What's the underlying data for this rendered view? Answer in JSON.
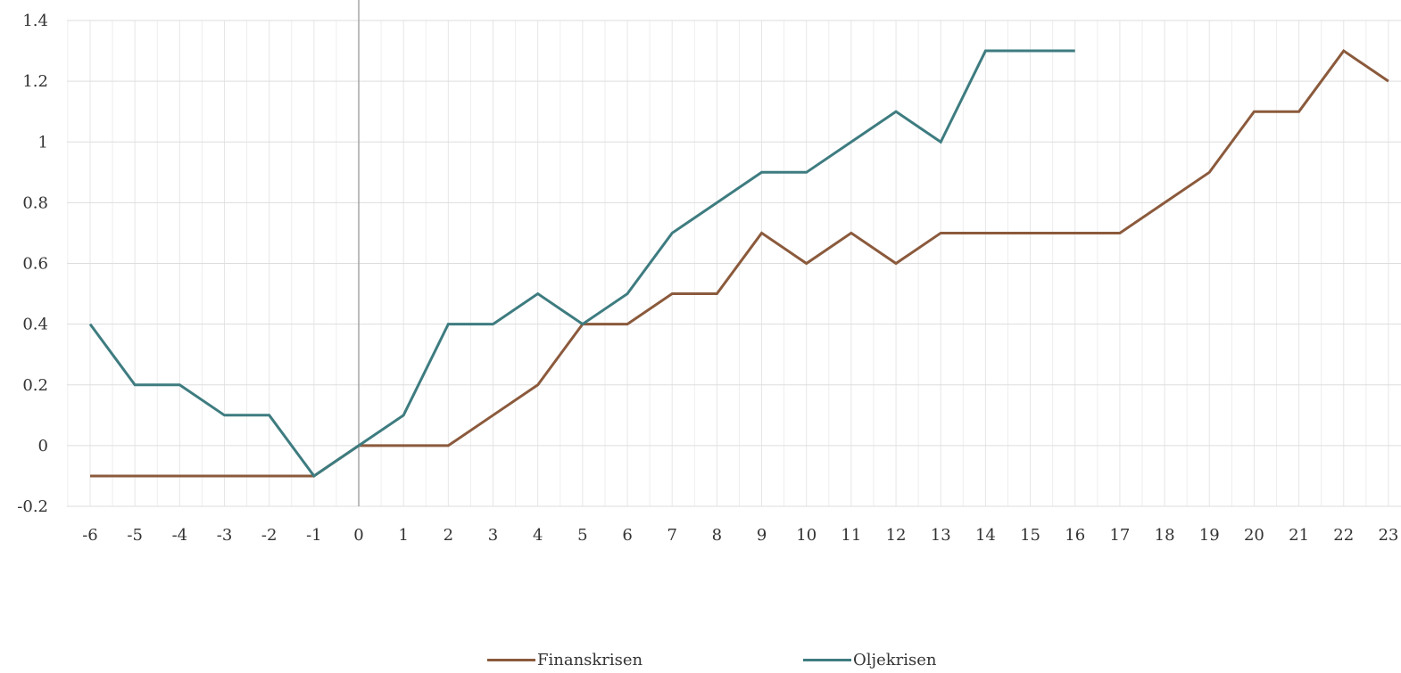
{
  "chart_data": {
    "type": "line",
    "title": "",
    "xlabel": "",
    "ylabel": "",
    "x": [
      -6,
      -5,
      -4,
      -3,
      -2,
      -1,
      0,
      1,
      2,
      3,
      4,
      5,
      6,
      7,
      8,
      9,
      10,
      11,
      12,
      13,
      14,
      15,
      16,
      17,
      18,
      19,
      20,
      21,
      22,
      23
    ],
    "ylim": [
      -0.2,
      1.4
    ],
    "yticks": [
      "-0.2",
      "0",
      "0.2",
      "0.4",
      "0.6",
      "0.8",
      "1",
      "1.2",
      "1.4"
    ],
    "grid": true,
    "legend_position": "bottom",
    "series": [
      {
        "name": "Finanskrisen",
        "color": "#8B5A3C",
        "values": [
          -0.1,
          -0.1,
          -0.1,
          -0.1,
          -0.1,
          -0.1,
          0,
          0,
          0,
          0.1,
          0.2,
          0.4,
          0.4,
          0.5,
          0.5,
          0.7,
          0.6,
          0.7,
          0.6,
          0.7,
          0.7,
          0.7,
          0.7,
          0.7,
          0.8,
          0.9,
          1.1,
          1.1,
          1.3,
          1.2
        ]
      },
      {
        "name": "Oljekrisen",
        "color": "#3E7C80",
        "values": [
          0.4,
          0.2,
          0.2,
          0.1,
          0.1,
          -0.1,
          0,
          0.1,
          0.4,
          0.4,
          0.5,
          0.4,
          0.5,
          0.7,
          0.8,
          0.9,
          0.9,
          1.0,
          1.1,
          1.0,
          1.3,
          1.3,
          1.3,
          null,
          null,
          null,
          null,
          null,
          null,
          null
        ]
      }
    ]
  }
}
